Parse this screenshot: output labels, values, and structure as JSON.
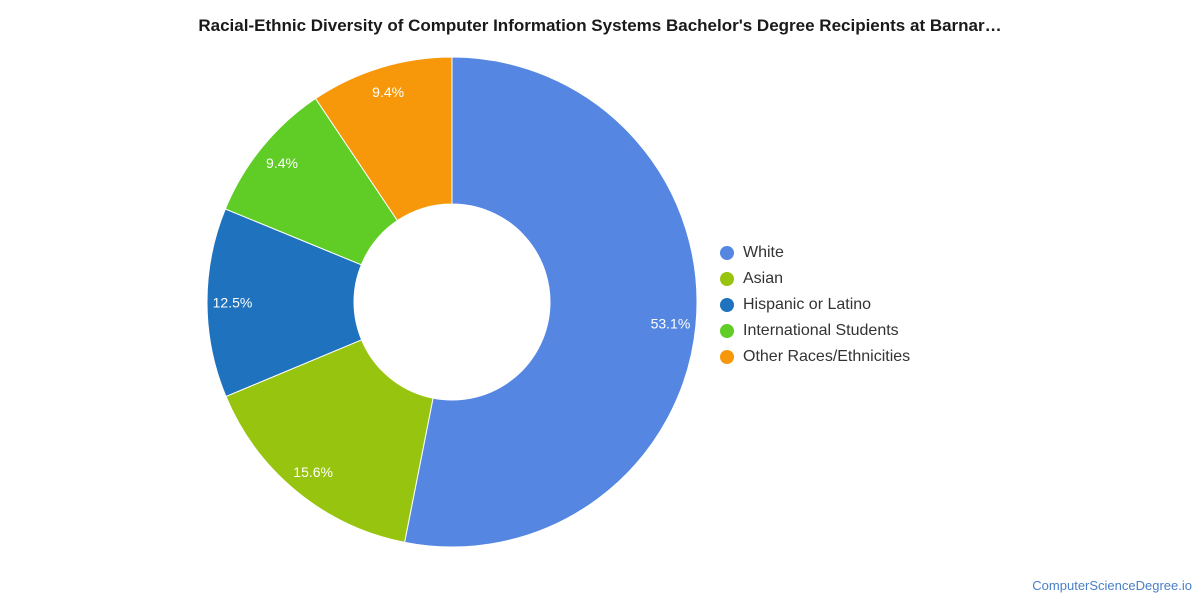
{
  "chart_data": {
    "type": "pie",
    "donut": true,
    "title": "Racial-Ethnic Diversity of Computer Information Systems Bachelor's Degree Recipients at Barnar…",
    "legend_position": "right",
    "slices": [
      {
        "label": "White",
        "value": 53.1,
        "display": "53.1%",
        "color": "#5486e2"
      },
      {
        "label": "Asian",
        "value": 15.6,
        "display": "15.6%",
        "color": "#97c40e"
      },
      {
        "label": "Hispanic or Latino",
        "value": 12.5,
        "display": "12.5%",
        "color": "#1f72bd"
      },
      {
        "label": "International Students",
        "value": 9.4,
        "display": "9.4%",
        "color": "#5fcd26"
      },
      {
        "label": "Other Races/Ethnicities",
        "value": 9.4,
        "display": "9.4%",
        "color": "#f7980b"
      }
    ]
  },
  "credit": "ComputerScienceDegree.io"
}
